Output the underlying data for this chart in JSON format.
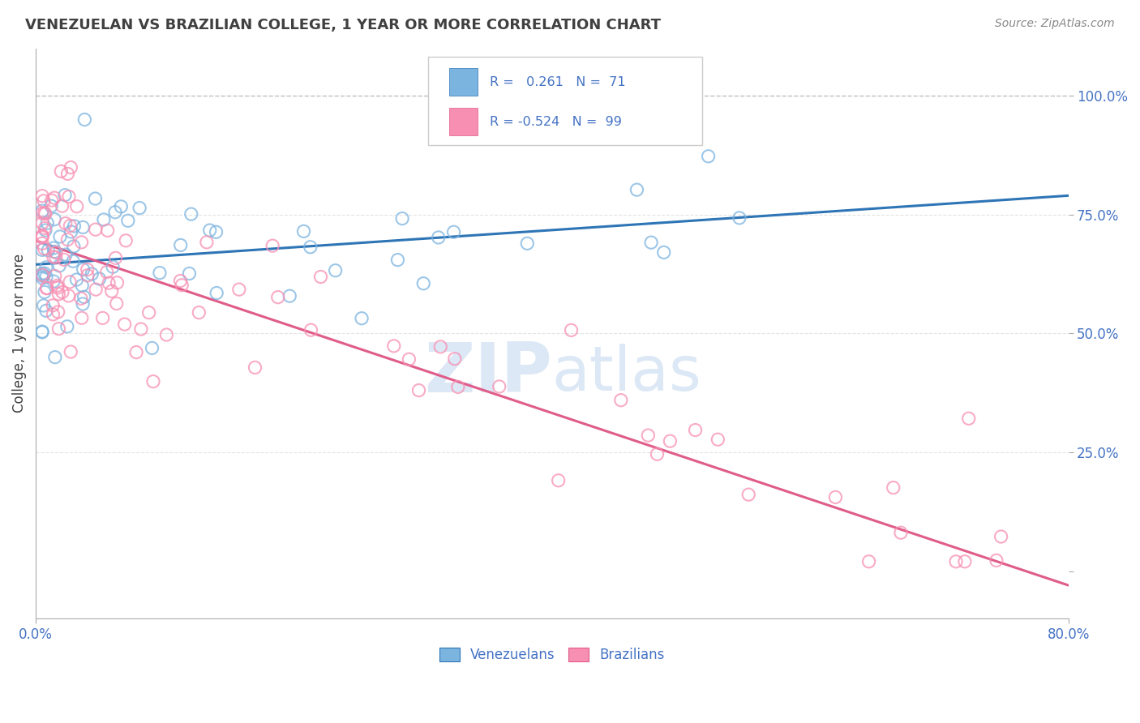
{
  "title": "VENEZUELAN VS BRAZILIAN COLLEGE, 1 YEAR OR MORE CORRELATION CHART",
  "source": "Source: ZipAtlas.com",
  "xlabel_label": "Venezuelans",
  "xlabel_label2": "Brazilians",
  "ylabel": "College, 1 year or more",
  "xlim": [
    0.0,
    0.8
  ],
  "ylim": [
    -0.1,
    1.1
  ],
  "R_venezuelan": 0.261,
  "N_venezuelan": 71,
  "R_brazilian": -0.524,
  "N_brazilian": 99,
  "blue_dot_color": "#7cb4e0",
  "pink_dot_color": "#f78fb3",
  "blue_line_color": "#2e75b6",
  "pink_line_color": "#e05c8a",
  "dashed_line_color": "#b8b8b8",
  "grid_color": "#d8d8d8",
  "tick_label_color": "#4472c4",
  "background_color": "#ffffff",
  "watermark_color": "#dce8f5",
  "legend_text_color": "#4472c4",
  "legend_border_color": "#cccccc",
  "source_color": "#888888",
  "title_color": "#404040",
  "ylabel_color": "#404040",
  "ven_line_x0": 0.0,
  "ven_line_y0": 0.645,
  "ven_line_x1": 0.8,
  "ven_line_y1": 0.79,
  "bra_line_x0": 0.0,
  "bra_line_y0": 0.695,
  "bra_line_x1": 0.8,
  "bra_line_y1": -0.03
}
